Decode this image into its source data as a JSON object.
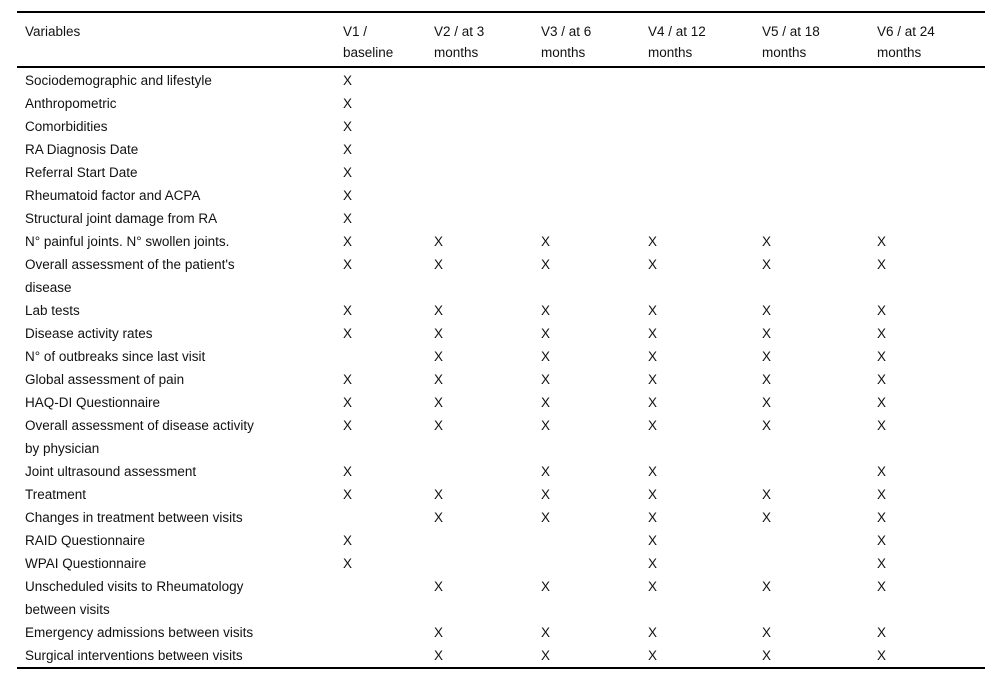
{
  "table": {
    "mark_glyph": "X",
    "columns": [
      {
        "label": "Variables"
      },
      {
        "label": "V1 /\nbaseline"
      },
      {
        "label": "V2 / at 3\nmonths"
      },
      {
        "label": "V3 / at 6\nmonths"
      },
      {
        "label": "V4 / at 12\nmonths"
      },
      {
        "label": "V5 / at 18\nmonths"
      },
      {
        "label": "V6 / at 24\nmonths"
      }
    ],
    "rows": [
      {
        "label": "Sociodemographic and lifestyle",
        "marks": [
          "X",
          "",
          "",
          "",
          "",
          ""
        ]
      },
      {
        "label": "Anthropometric",
        "marks": [
          "X",
          "",
          "",
          "",
          "",
          ""
        ]
      },
      {
        "label": "Comorbidities",
        "marks": [
          "X",
          "",
          "",
          "",
          "",
          ""
        ]
      },
      {
        "label": "RA Diagnosis Date",
        "marks": [
          "X",
          "",
          "",
          "",
          "",
          ""
        ]
      },
      {
        "label": "Referral Start Date",
        "marks": [
          "X",
          "",
          "",
          "",
          "",
          ""
        ]
      },
      {
        "label": "Rheumatoid factor and ACPA",
        "marks": [
          "X",
          "",
          "",
          "",
          "",
          ""
        ]
      },
      {
        "label": "Structural joint damage from RA",
        "marks": [
          "X",
          "",
          "",
          "",
          "",
          ""
        ]
      },
      {
        "label": "N° painful joints. N° swollen joints.",
        "marks": [
          "X",
          "X",
          "X",
          "X",
          "X",
          "X"
        ]
      },
      {
        "label": "Overall assessment of the patient's\ndisease",
        "marks": [
          "X",
          "X",
          "X",
          "X",
          "X",
          "X"
        ]
      },
      {
        "label": "Lab tests",
        "marks": [
          "X",
          "X",
          "X",
          "X",
          "X",
          "X"
        ]
      },
      {
        "label": "Disease activity rates",
        "marks": [
          "X",
          "X",
          "X",
          "X",
          "X",
          "X"
        ]
      },
      {
        "label": "N° of outbreaks since last visit",
        "marks": [
          "",
          "X",
          "X",
          "X",
          "X",
          "X"
        ]
      },
      {
        "label": "Global assessment of pain",
        "marks": [
          "X",
          "X",
          "X",
          "X",
          "X",
          "X"
        ]
      },
      {
        "label": "HAQ-DI Questionnaire",
        "marks": [
          "X",
          "X",
          "X",
          "X",
          "X",
          "X"
        ]
      },
      {
        "label": "Overall assessment of disease activity\nby physician",
        "marks": [
          "X",
          "X",
          "X",
          "X",
          "X",
          "X"
        ]
      },
      {
        "label": "Joint ultrasound assessment",
        "marks": [
          "X",
          "",
          "X",
          "X",
          "",
          "X"
        ]
      },
      {
        "label": "Treatment",
        "marks": [
          "X",
          "X",
          "X",
          "X",
          "X",
          "X"
        ]
      },
      {
        "label": "Changes in treatment between visits",
        "marks": [
          "",
          "X",
          "X",
          "X",
          "X",
          "X"
        ]
      },
      {
        "label": "RAID Questionnaire",
        "marks": [
          "X",
          "",
          "",
          "X",
          "",
          "X"
        ]
      },
      {
        "label": "WPAI Questionnaire",
        "marks": [
          "X",
          "",
          "",
          "X",
          "",
          "X"
        ]
      },
      {
        "label": "Unscheduled visits to Rheumatology\nbetween visits",
        "marks": [
          "",
          "X",
          "X",
          "X",
          "X",
          "X"
        ]
      },
      {
        "label": "Emergency admissions between visits",
        "marks": [
          "",
          "X",
          "X",
          "X",
          "X",
          "X"
        ]
      },
      {
        "label": "Surgical interventions between visits",
        "marks": [
          "",
          "X",
          "X",
          "X",
          "X",
          "X"
        ]
      }
    ]
  }
}
